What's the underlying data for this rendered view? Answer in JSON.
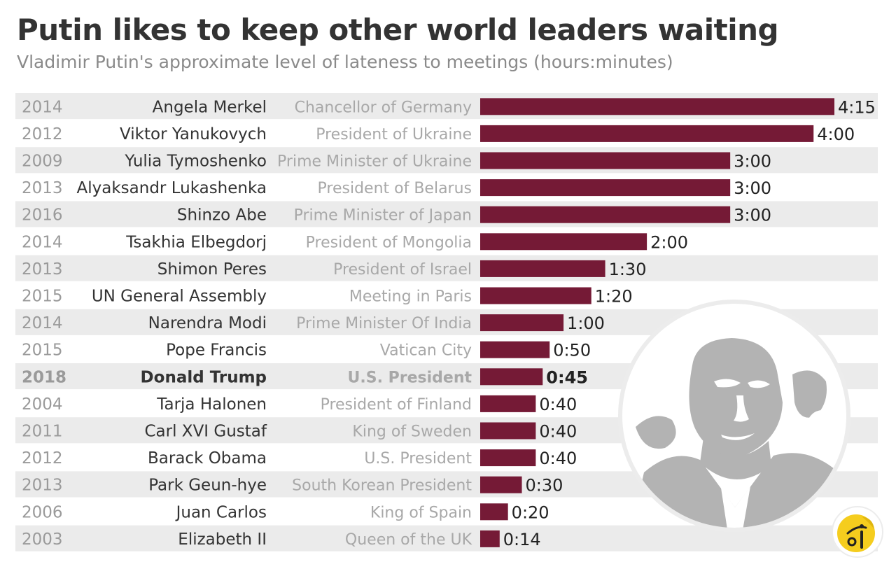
{
  "title": "Putin likes to keep other world leaders waiting",
  "subtitle": "Vladimir Putin's approximate level of lateness to meetings (hours:minutes)",
  "colors": {
    "bar": "#751a36",
    "row_band": "#ebebeb",
    "year_text": "#9a9a9a",
    "name_text": "#333333",
    "role_text": "#a8a8a8",
    "value_text": "#222222"
  },
  "chart_data": {
    "type": "bar",
    "orientation": "horizontal",
    "title": "Putin likes to keep other world leaders waiting",
    "subtitle": "Vladimir Putin's approximate level of lateness to meetings (hours:minutes)",
    "value_unit": "minutes",
    "xlim": [
      0,
      255
    ],
    "grid": false,
    "legend": "none",
    "rows": [
      {
        "year": "2014",
        "name": "Angela Merkel",
        "role": "Chancellor of Germany",
        "label": "4:15",
        "minutes": 255,
        "highlight": false
      },
      {
        "year": "2012",
        "name": "Viktor Yanukovych",
        "role": "President of Ukraine",
        "label": "4:00",
        "minutes": 240,
        "highlight": false
      },
      {
        "year": "2009",
        "name": "Yulia Tymoshenko",
        "role": "Prime Minister of Ukraine",
        "label": "3:00",
        "minutes": 180,
        "highlight": false
      },
      {
        "year": "2013",
        "name": "Alyaksandr Lukashenka",
        "role": "President of Belarus",
        "label": "3:00",
        "minutes": 180,
        "highlight": false
      },
      {
        "year": "2016",
        "name": "Shinzo Abe",
        "role": "Prime Minister of Japan",
        "label": "3:00",
        "minutes": 180,
        "highlight": false
      },
      {
        "year": "2014",
        "name": "Tsakhia Elbegdorj",
        "role": "President of Mongolia",
        "label": "2:00",
        "minutes": 120,
        "highlight": false
      },
      {
        "year": "2013",
        "name": "Shimon Peres",
        "role": "President of Israel",
        "label": "1:30",
        "minutes": 90,
        "highlight": false
      },
      {
        "year": "2015",
        "name": "UN General Assembly",
        "role": "Meeting in Paris",
        "label": "1:20",
        "minutes": 80,
        "highlight": false
      },
      {
        "year": "2014",
        "name": "Narendra Modi",
        "role": "Prime Minister Of India",
        "label": "1:00",
        "minutes": 60,
        "highlight": false
      },
      {
        "year": "2015",
        "name": "Pope Francis",
        "role": "Vatican City",
        "label": "0:50",
        "minutes": 50,
        "highlight": false
      },
      {
        "year": "2018",
        "name": "Donald Trump",
        "role": "U.S. President",
        "label": "0:45",
        "minutes": 45,
        "highlight": true
      },
      {
        "year": "2004",
        "name": "Tarja Halonen",
        "role": "President of Finland",
        "label": "0:40",
        "minutes": 40,
        "highlight": false
      },
      {
        "year": "2011",
        "name": "Carl XVI Gustaf",
        "role": "King of Sweden",
        "label": "0:40",
        "minutes": 40,
        "highlight": false
      },
      {
        "year": "2012",
        "name": "Barack Obama",
        "role": "U.S. President",
        "label": "0:40",
        "minutes": 40,
        "highlight": false
      },
      {
        "year": "2013",
        "name": "Park Geun-hye",
        "role": "South Korean President",
        "label": "0:30",
        "minutes": 30,
        "highlight": false
      },
      {
        "year": "2006",
        "name": "Juan Carlos",
        "role": "King of Spain",
        "label": "0:20",
        "minutes": 20,
        "highlight": false
      },
      {
        "year": "2003",
        "name": "Elizabeth II",
        "role": "Queen of the UK",
        "label": "0:14",
        "minutes": 14,
        "highlight": false
      }
    ]
  },
  "images": {
    "portrait": "vladimir-putin-portrait-illustration",
    "logo": "brand-logo-icon"
  }
}
